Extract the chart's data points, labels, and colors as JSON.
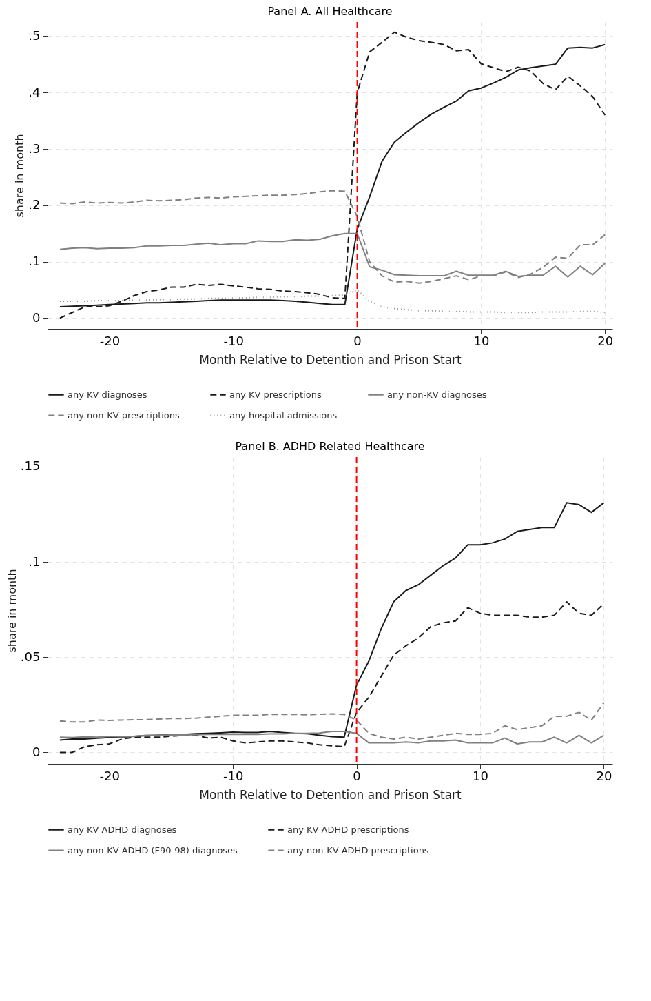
{
  "chart_data": [
    {
      "type": "line",
      "title": "Panel A. All Healthcare",
      "xlabel": "Month Relative to Detention and Prison Start",
      "ylabel": "share in month",
      "x": [
        -24,
        -23,
        -22,
        -21,
        -20,
        -19,
        -18,
        -17,
        -16,
        -15,
        -14,
        -13,
        -12,
        -11,
        -10,
        -9,
        -8,
        -7,
        -6,
        -5,
        -4,
        -3,
        -2,
        -1,
        0,
        1,
        2,
        3,
        4,
        5,
        6,
        7,
        8,
        9,
        10,
        11,
        12,
        13,
        14,
        15,
        16,
        17,
        18,
        19,
        20
      ],
      "xlim": [
        -25,
        20.6
      ],
      "xticks": [
        -20,
        -10,
        0,
        10,
        20
      ],
      "ylim": [
        -0.019,
        0.525
      ],
      "yticks": [
        0,
        {
          "value": 0.1,
          "label": ".1"
        },
        {
          "value": 0.2,
          "label": ".2"
        },
        {
          "value": 0.3,
          "label": ".3"
        },
        {
          "value": 0.4,
          "label": ".4"
        },
        {
          "value": 0.5,
          "label": ".5"
        }
      ],
      "grid": true,
      "legend": "bottom",
      "ref_lines": [
        {
          "axis": "x",
          "value": 0,
          "color": "#ff0000",
          "line_style": "dashed"
        }
      ],
      "series": [
        {
          "name": "any KV diagnoses",
          "color": "#1a1a1a",
          "line_style": "solid",
          "values": [
            0.02,
            0.021,
            0.022,
            0.023,
            0.024,
            0.025,
            0.026,
            0.027,
            0.027,
            0.028,
            0.029,
            0.03,
            0.031,
            0.032,
            0.032,
            0.032,
            0.032,
            0.032,
            0.031,
            0.03,
            0.028,
            0.026,
            0.024,
            0.024,
            0.158,
            0.215,
            0.278,
            0.312,
            0.33,
            0.347,
            0.362,
            0.374,
            0.385,
            0.403,
            0.408,
            0.417,
            0.427,
            0.44,
            0.444,
            0.447,
            0.45,
            0.479,
            0.48,
            0.479,
            0.485
          ]
        },
        {
          "name": "any KV prescriptions",
          "color": "#1a1a1a",
          "line_style": "dashed",
          "values": [
            0.0,
            0.01,
            0.02,
            0.02,
            0.022,
            0.03,
            0.04,
            0.047,
            0.05,
            0.055,
            0.055,
            0.06,
            0.058,
            0.06,
            0.057,
            0.055,
            0.052,
            0.051,
            0.048,
            0.047,
            0.045,
            0.042,
            0.036,
            0.035,
            0.4,
            0.472,
            0.489,
            0.507,
            0.498,
            0.492,
            0.489,
            0.485,
            0.474,
            0.476,
            0.451,
            0.444,
            0.437,
            0.445,
            0.438,
            0.416,
            0.405,
            0.429,
            0.412,
            0.393,
            0.36
          ]
        },
        {
          "name": "any non-KV diagnoses",
          "color": "#808080",
          "line_style": "solid",
          "values": [
            0.122,
            0.124,
            0.125,
            0.123,
            0.124,
            0.124,
            0.125,
            0.128,
            0.128,
            0.129,
            0.129,
            0.131,
            0.133,
            0.13,
            0.132,
            0.132,
            0.137,
            0.136,
            0.136,
            0.139,
            0.138,
            0.14,
            0.146,
            0.15,
            0.15,
            0.091,
            0.085,
            0.077,
            0.076,
            0.075,
            0.075,
            0.075,
            0.083,
            0.076,
            0.076,
            0.076,
            0.083,
            0.074,
            0.076,
            0.076,
            0.092,
            0.073,
            0.092,
            0.077,
            0.097
          ]
        },
        {
          "name": "any non-KV prescriptions",
          "color": "#808080",
          "line_style": "dashed",
          "values": [
            0.204,
            0.203,
            0.206,
            0.204,
            0.205,
            0.204,
            0.206,
            0.209,
            0.208,
            0.209,
            0.21,
            0.213,
            0.214,
            0.213,
            0.215,
            0.216,
            0.217,
            0.218,
            0.218,
            0.219,
            0.221,
            0.224,
            0.226,
            0.225,
            0.18,
            0.1,
            0.075,
            0.064,
            0.065,
            0.062,
            0.065,
            0.07,
            0.075,
            0.068,
            0.075,
            0.075,
            0.082,
            0.072,
            0.078,
            0.09,
            0.108,
            0.106,
            0.13,
            0.13,
            0.148
          ]
        },
        {
          "name": "any hospital admissions",
          "color": "#999999",
          "line_style": "dotted",
          "values": [
            0.03,
            0.03,
            0.03,
            0.031,
            0.031,
            0.031,
            0.032,
            0.032,
            0.033,
            0.033,
            0.034,
            0.034,
            0.035,
            0.035,
            0.036,
            0.036,
            0.037,
            0.037,
            0.038,
            0.038,
            0.039,
            0.039,
            0.04,
            0.041,
            0.05,
            0.03,
            0.02,
            0.017,
            0.015,
            0.013,
            0.013,
            0.012,
            0.012,
            0.011,
            0.011,
            0.011,
            0.01,
            0.01,
            0.01,
            0.011,
            0.011,
            0.011,
            0.012,
            0.012,
            0.01
          ]
        }
      ]
    },
    {
      "type": "line",
      "title": "Panel B. ADHD Related Healthcare",
      "xlabel": "Month Relative to Detention and Prison Start",
      "ylabel": "share in month",
      "x": [
        -24,
        -23,
        -22,
        -21,
        -20,
        -19,
        -18,
        -17,
        -16,
        -15,
        -14,
        -13,
        -12,
        -11,
        -10,
        -9,
        -8,
        -7,
        -6,
        -5,
        -4,
        -3,
        -2,
        -1,
        0,
        1,
        2,
        3,
        4,
        5,
        6,
        7,
        8,
        9,
        10,
        11,
        12,
        13,
        14,
        15,
        16,
        17,
        18,
        19,
        20
      ],
      "xlim": [
        -25,
        20.7
      ],
      "xticks": [
        -20,
        -10,
        0,
        10,
        20
      ],
      "ylim": [
        -0.006,
        0.155
      ],
      "yticks": [
        0,
        {
          "value": 0.05,
          "label": ".05"
        },
        {
          "value": 0.1,
          "label": ".1"
        },
        {
          "value": 0.15,
          "label": ".15"
        }
      ],
      "grid": true,
      "legend": "bottom",
      "ref_lines": [
        {
          "axis": "x",
          "value": 0,
          "color": "#ff0000",
          "line_style": "dashed"
        }
      ],
      "series": [
        {
          "name": "any KV ADHD diagnoses",
          "color": "#1a1a1a",
          "line_style": "solid",
          "values": [
            0.0065,
            0.007,
            0.007,
            0.0075,
            0.0078,
            0.008,
            0.0085,
            0.0088,
            0.009,
            0.0093,
            0.0095,
            0.0098,
            0.01,
            0.0103,
            0.0106,
            0.0105,
            0.0105,
            0.011,
            0.0105,
            0.01,
            0.0098,
            0.009,
            0.0083,
            0.008,
            0.0353,
            0.048,
            0.065,
            0.079,
            0.085,
            0.088,
            0.093,
            0.098,
            0.102,
            0.109,
            0.109,
            0.11,
            0.112,
            0.116,
            0.117,
            0.118,
            0.118,
            0.131,
            0.13,
            0.126,
            0.131
          ]
        },
        {
          "name": "any KV ADHD prescriptions",
          "color": "#1a1a1a",
          "line_style": "dashed",
          "values": [
            0,
            0,
            0.003,
            0.004,
            0.0045,
            0.007,
            0.008,
            0.008,
            0.008,
            0.0085,
            0.009,
            0.009,
            0.0075,
            0.008,
            0.006,
            0.005,
            0.0055,
            0.006,
            0.006,
            0.0055,
            0.005,
            0.004,
            0.0035,
            0.003,
            0.021,
            0.029,
            0.04,
            0.051,
            0.056,
            0.06,
            0.066,
            0.068,
            0.069,
            0.076,
            0.073,
            0.072,
            0.072,
            0.072,
            0.071,
            0.071,
            0.072,
            0.079,
            0.073,
            0.072,
            0.078
          ]
        },
        {
          "name": "any non-KV ADHD (F90-98) diagnoses",
          "color": "#808080",
          "line_style": "solid",
          "values": [
            0.008,
            0.0078,
            0.0082,
            0.008,
            0.0085,
            0.0082,
            0.0085,
            0.009,
            0.009,
            0.0092,
            0.0092,
            0.0093,
            0.0095,
            0.0095,
            0.0095,
            0.0095,
            0.0095,
            0.0097,
            0.0097,
            0.01,
            0.01,
            0.0102,
            0.011,
            0.011,
            0.01,
            0.005,
            0.005,
            0.005,
            0.0055,
            0.005,
            0.006,
            0.006,
            0.0065,
            0.005,
            0.005,
            0.005,
            0.0075,
            0.0045,
            0.0055,
            0.0055,
            0.008,
            0.005,
            0.009,
            0.005,
            0.009
          ]
        },
        {
          "name": "any non-KV ADHD prescriptions",
          "color": "#808080",
          "line_style": "dashed",
          "values": [
            0.0165,
            0.016,
            0.016,
            0.017,
            0.0168,
            0.017,
            0.0172,
            0.0172,
            0.0175,
            0.0178,
            0.0178,
            0.018,
            0.0185,
            0.019,
            0.0195,
            0.0195,
            0.0195,
            0.02,
            0.02,
            0.02,
            0.0198,
            0.02,
            0.0202,
            0.02,
            0.017,
            0.01,
            0.008,
            0.007,
            0.008,
            0.007,
            0.008,
            0.009,
            0.01,
            0.0095,
            0.0095,
            0.01,
            0.014,
            0.012,
            0.013,
            0.014,
            0.019,
            0.019,
            0.021,
            0.017,
            0.026
          ]
        }
      ]
    }
  ]
}
